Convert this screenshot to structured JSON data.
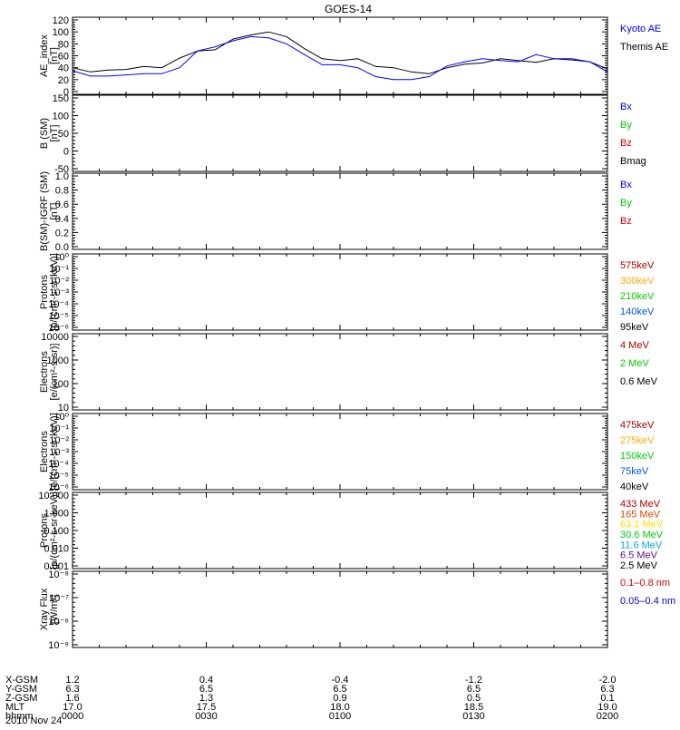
{
  "title": "GOES-14",
  "chart_data": [
    {
      "type": "line",
      "ylabel": "AE_index\n[nT]",
      "yticks": [
        "120",
        "100",
        "80",
        "60",
        "40",
        "20",
        "0"
      ],
      "ylim": [
        0,
        120
      ],
      "legend": [
        {
          "label": "Kyoto AE",
          "color": "#0000ff"
        },
        {
          "label": "Themis AE",
          "color": "#000000"
        }
      ],
      "series": [
        {
          "name": "Themis AE",
          "color": "#000000",
          "x": [
            0,
            4,
            8,
            12,
            16,
            20,
            24,
            28,
            32,
            36,
            40,
            44,
            48,
            52,
            56,
            60,
            64,
            68,
            72,
            76,
            80,
            84,
            88,
            92,
            96,
            100,
            104,
            108,
            112,
            116,
            120
          ],
          "y": [
            40,
            33,
            36,
            37,
            42,
            40,
            56,
            68,
            70,
            88,
            95,
            100,
            92,
            72,
            55,
            52,
            55,
            42,
            40,
            33,
            30,
            40,
            46,
            48,
            55,
            52,
            49,
            55,
            53,
            50,
            38
          ]
        },
        {
          "name": "Kyoto AE",
          "color": "#0000ff",
          "x": [
            0,
            4,
            8,
            12,
            16,
            20,
            24,
            28,
            32,
            36,
            40,
            44,
            48,
            52,
            56,
            60,
            64,
            68,
            72,
            76,
            80,
            84,
            88,
            92,
            96,
            100,
            104,
            108,
            112,
            116,
            120
          ],
          "y": [
            35,
            26,
            26,
            28,
            30,
            30,
            40,
            68,
            75,
            85,
            92,
            90,
            80,
            62,
            45,
            45,
            40,
            25,
            20,
            20,
            25,
            43,
            50,
            55,
            52,
            50,
            62,
            55,
            55,
            50,
            33
          ]
        }
      ]
    },
    {
      "type": "line",
      "ylabel": "B (SM)\n[nT]",
      "yticks": [
        "150",
        "100",
        "50",
        "0",
        "-50"
      ],
      "ylim": [
        -60,
        160
      ],
      "legend": [
        {
          "label": "Bx",
          "color": "#0000ff"
        },
        {
          "label": "By",
          "color": "#00cc00"
        },
        {
          "label": "Bz",
          "color": "#dd0000"
        },
        {
          "label": "Bmag",
          "color": "#000000"
        }
      ],
      "series": []
    },
    {
      "type": "line",
      "ylabel": "B(SM)-IGRF (SM)\n[nT]",
      "yticks": [
        "1.0",
        "0.8",
        "0.6",
        "0.4",
        "0.2",
        "0.0"
      ],
      "ylim": [
        0,
        1
      ],
      "legend": [
        {
          "label": "Bx",
          "color": "#0000ff"
        },
        {
          "label": "By",
          "color": "#00cc00"
        },
        {
          "label": "Bz",
          "color": "#dd0000"
        }
      ],
      "series": []
    },
    {
      "type": "line",
      "ylabel": "Protons\n[p/(cm²-s-sr-keV)]",
      "yticks": [
        "10⁰",
        "10⁻¹",
        "10⁻²",
        "10⁻³",
        "10⁻⁴",
        "10⁻⁵",
        "10⁻⁶"
      ],
      "ylim": [
        "1e-6",
        "1"
      ],
      "legend": [
        {
          "label": "575keV",
          "color": "#aa0000"
        },
        {
          "label": "300keV",
          "color": "#ffaa00"
        },
        {
          "label": "210keV",
          "color": "#00cc00"
        },
        {
          "label": "140keV",
          "color": "#0055dd"
        },
        {
          "label": "95keV",
          "color": "#000000"
        }
      ],
      "series": []
    },
    {
      "type": "line",
      "ylabel": "Electrons\n[e/(cm²-s-sr)]",
      "yticks": [
        "10000",
        "1000",
        "100",
        "10"
      ],
      "ylim": [
        10,
        10000
      ],
      "legend": [
        {
          "label": "4 MeV",
          "color": "#aa0000"
        },
        {
          "label": "2 MeV",
          "color": "#00cc00"
        },
        {
          "label": "0.6 MeV",
          "color": "#000000"
        }
      ],
      "series": []
    },
    {
      "type": "line",
      "ylabel": "Electrons\n[e/(cm²-s-sr-keV)]",
      "yticks": [
        "10⁰",
        "10⁻¹",
        "10⁻²",
        "10⁻³",
        "10⁻⁴",
        "10⁻⁵",
        "10⁻⁶"
      ],
      "ylim": [
        "1e-6",
        "1"
      ],
      "legend": [
        {
          "label": "475keV",
          "color": "#aa0000"
        },
        {
          "label": "275keV",
          "color": "#ffaa00"
        },
        {
          "label": "150keV",
          "color": "#00cc00"
        },
        {
          "label": "75keV",
          "color": "#0055dd"
        },
        {
          "label": "40keV",
          "color": "#000000"
        }
      ],
      "series": []
    },
    {
      "type": "line",
      "ylabel": "Protons\n[p/(cm²-s-sr-keV)]",
      "yticks": [
        "10.000",
        "1.000",
        "0.100",
        "0.010",
        "0.001"
      ],
      "ylim": [
        0.001,
        10
      ],
      "legend": [
        {
          "label": "433 MeV",
          "color": "#aa0000"
        },
        {
          "label": "165 MeV",
          "color": "#dd4400"
        },
        {
          "label": "63.1 MeV",
          "color": "#ffdd00"
        },
        {
          "label": "30.6 MeV",
          "color": "#00cc00"
        },
        {
          "label": "11.6 MeV",
          "color": "#00aadd"
        },
        {
          "label": "6.5 MeV",
          "color": "#551188"
        },
        {
          "label": "2.5 MeV",
          "color": "#000000"
        }
      ],
      "series": []
    },
    {
      "type": "line",
      "ylabel": "Xray Flux\n[W/m²]",
      "yticks": [
        "10⁻⁸",
        "10⁻⁷",
        "10⁻⁶",
        "10⁻⁹"
      ],
      "ylim": [
        "1e-9",
        "1e-6"
      ],
      "legend": [
        {
          "label": "0.1–0.8 nm",
          "color": "#dd0000"
        },
        {
          "label": "0.05–0.4 nm",
          "color": "#0000cc"
        }
      ],
      "series": []
    }
  ],
  "xaxis": {
    "row_labels": [
      "X-GSM",
      "Y-GSM",
      "Z-GSM",
      "MLT",
      "hhmm"
    ],
    "date": "2010 Nov 24",
    "columns": [
      [
        "1.2",
        "6.3",
        "1.6",
        "17.0",
        "0000"
      ],
      [
        "0.4",
        "6.5",
        "1.3",
        "17.5",
        "0030"
      ],
      [
        "-0.4",
        "6.5",
        "0.9",
        "18.0",
        "0100"
      ],
      [
        "-1.2",
        "6.5",
        "0.5",
        "18.5",
        "0130"
      ],
      [
        "-2.0",
        "6.3",
        "0.1",
        "19.0",
        "0200"
      ]
    ],
    "range_minutes": [
      0,
      120
    ]
  }
}
